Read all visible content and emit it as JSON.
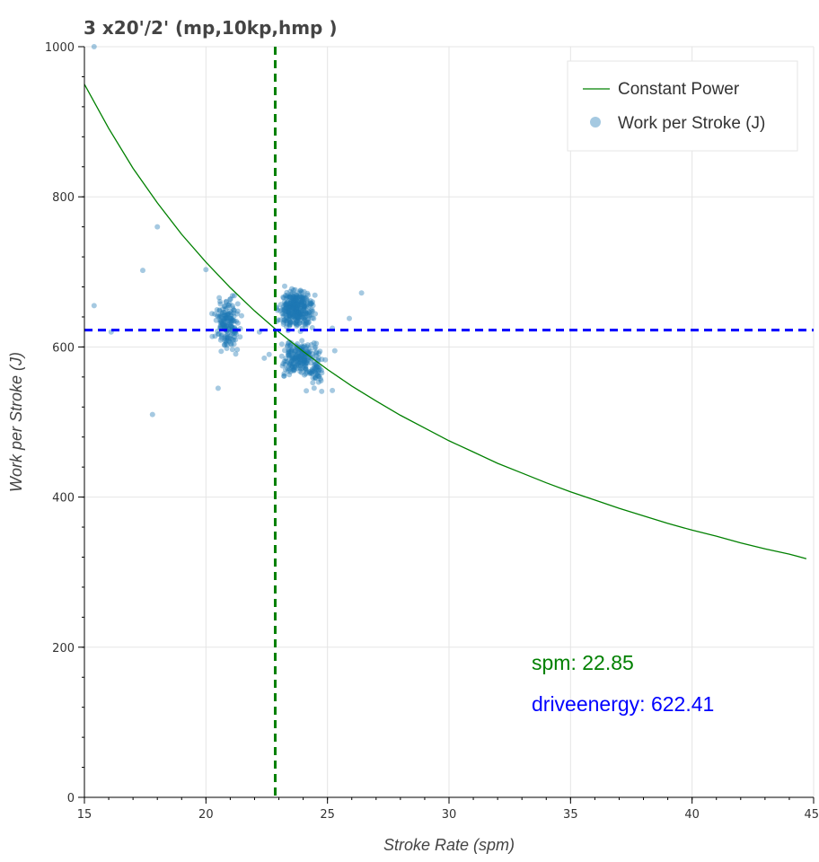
{
  "chart_data": {
    "type": "scatter",
    "title": "3 x20'/2' (mp,10kp,hmp )",
    "xlabel": "Stroke Rate (spm)",
    "ylabel": "Work per Stroke (J)",
    "xlim": [
      15,
      45
    ],
    "ylim": [
      0,
      1000
    ],
    "x_ticks": [
      "15",
      "20",
      "25",
      "30",
      "35",
      "40",
      "45"
    ],
    "y_ticks": [
      "0",
      "200",
      "400",
      "600",
      "800",
      "1000"
    ],
    "grid": true,
    "legend_position": "top-right",
    "colors": {
      "scatter": "#1f77b4",
      "constant_power": "#008000",
      "vline": "#008000",
      "hline": "#0000ff",
      "grid": "#e5e5e5"
    },
    "series": [
      {
        "name": "Constant Power",
        "kind": "line",
        "x": [
          15,
          16,
          17,
          18,
          19,
          20,
          21,
          22,
          23,
          24,
          25,
          26,
          27,
          28,
          29,
          30,
          31,
          32,
          33,
          34,
          35,
          36,
          37,
          38,
          39,
          40,
          41,
          42,
          43,
          44,
          44.7
        ],
        "y": [
          950,
          891,
          838,
          792,
          750,
          713,
          679,
          648,
          620,
          594,
          570,
          548,
          528,
          509,
          492,
          475,
          460,
          445,
          432,
          419,
          407,
          396,
          385,
          375,
          365,
          356,
          348,
          339,
          331,
          324,
          318
        ]
      },
      {
        "name": "Work per Stroke (J)",
        "kind": "scatter",
        "clusters": [
          {
            "cx": 20.9,
            "cy": 630,
            "sx": 0.35,
            "sy": 22,
            "n": 170
          },
          {
            "cx": 23.7,
            "cy": 650,
            "sx": 0.45,
            "sy": 17,
            "n": 330
          },
          {
            "cx": 23.9,
            "cy": 585,
            "sx": 0.55,
            "sy": 17,
            "n": 210
          },
          {
            "cx": 24.5,
            "cy": 565,
            "sx": 0.3,
            "sy": 13,
            "n": 40
          }
        ],
        "points": [
          [
            15.4,
            1000
          ],
          [
            15.4,
            655
          ],
          [
            16.1,
            620
          ],
          [
            17.4,
            702
          ],
          [
            17.8,
            510
          ],
          [
            18.0,
            760
          ],
          [
            20.0,
            703
          ],
          [
            20.5,
            545
          ],
          [
            22.2,
            620
          ],
          [
            25.2,
            542
          ],
          [
            25.3,
            595
          ],
          [
            25.2,
            625
          ],
          [
            25.9,
            638
          ],
          [
            26.4,
            672
          ],
          [
            22.6,
            590
          ],
          [
            22.4,
            585
          ]
        ]
      }
    ],
    "reference_lines": {
      "spm": 22.85,
      "driveenergy": 622.41
    },
    "annotations": {
      "spm": "spm:  22.85",
      "driveenergy": "driveenergy: 622.41"
    }
  }
}
